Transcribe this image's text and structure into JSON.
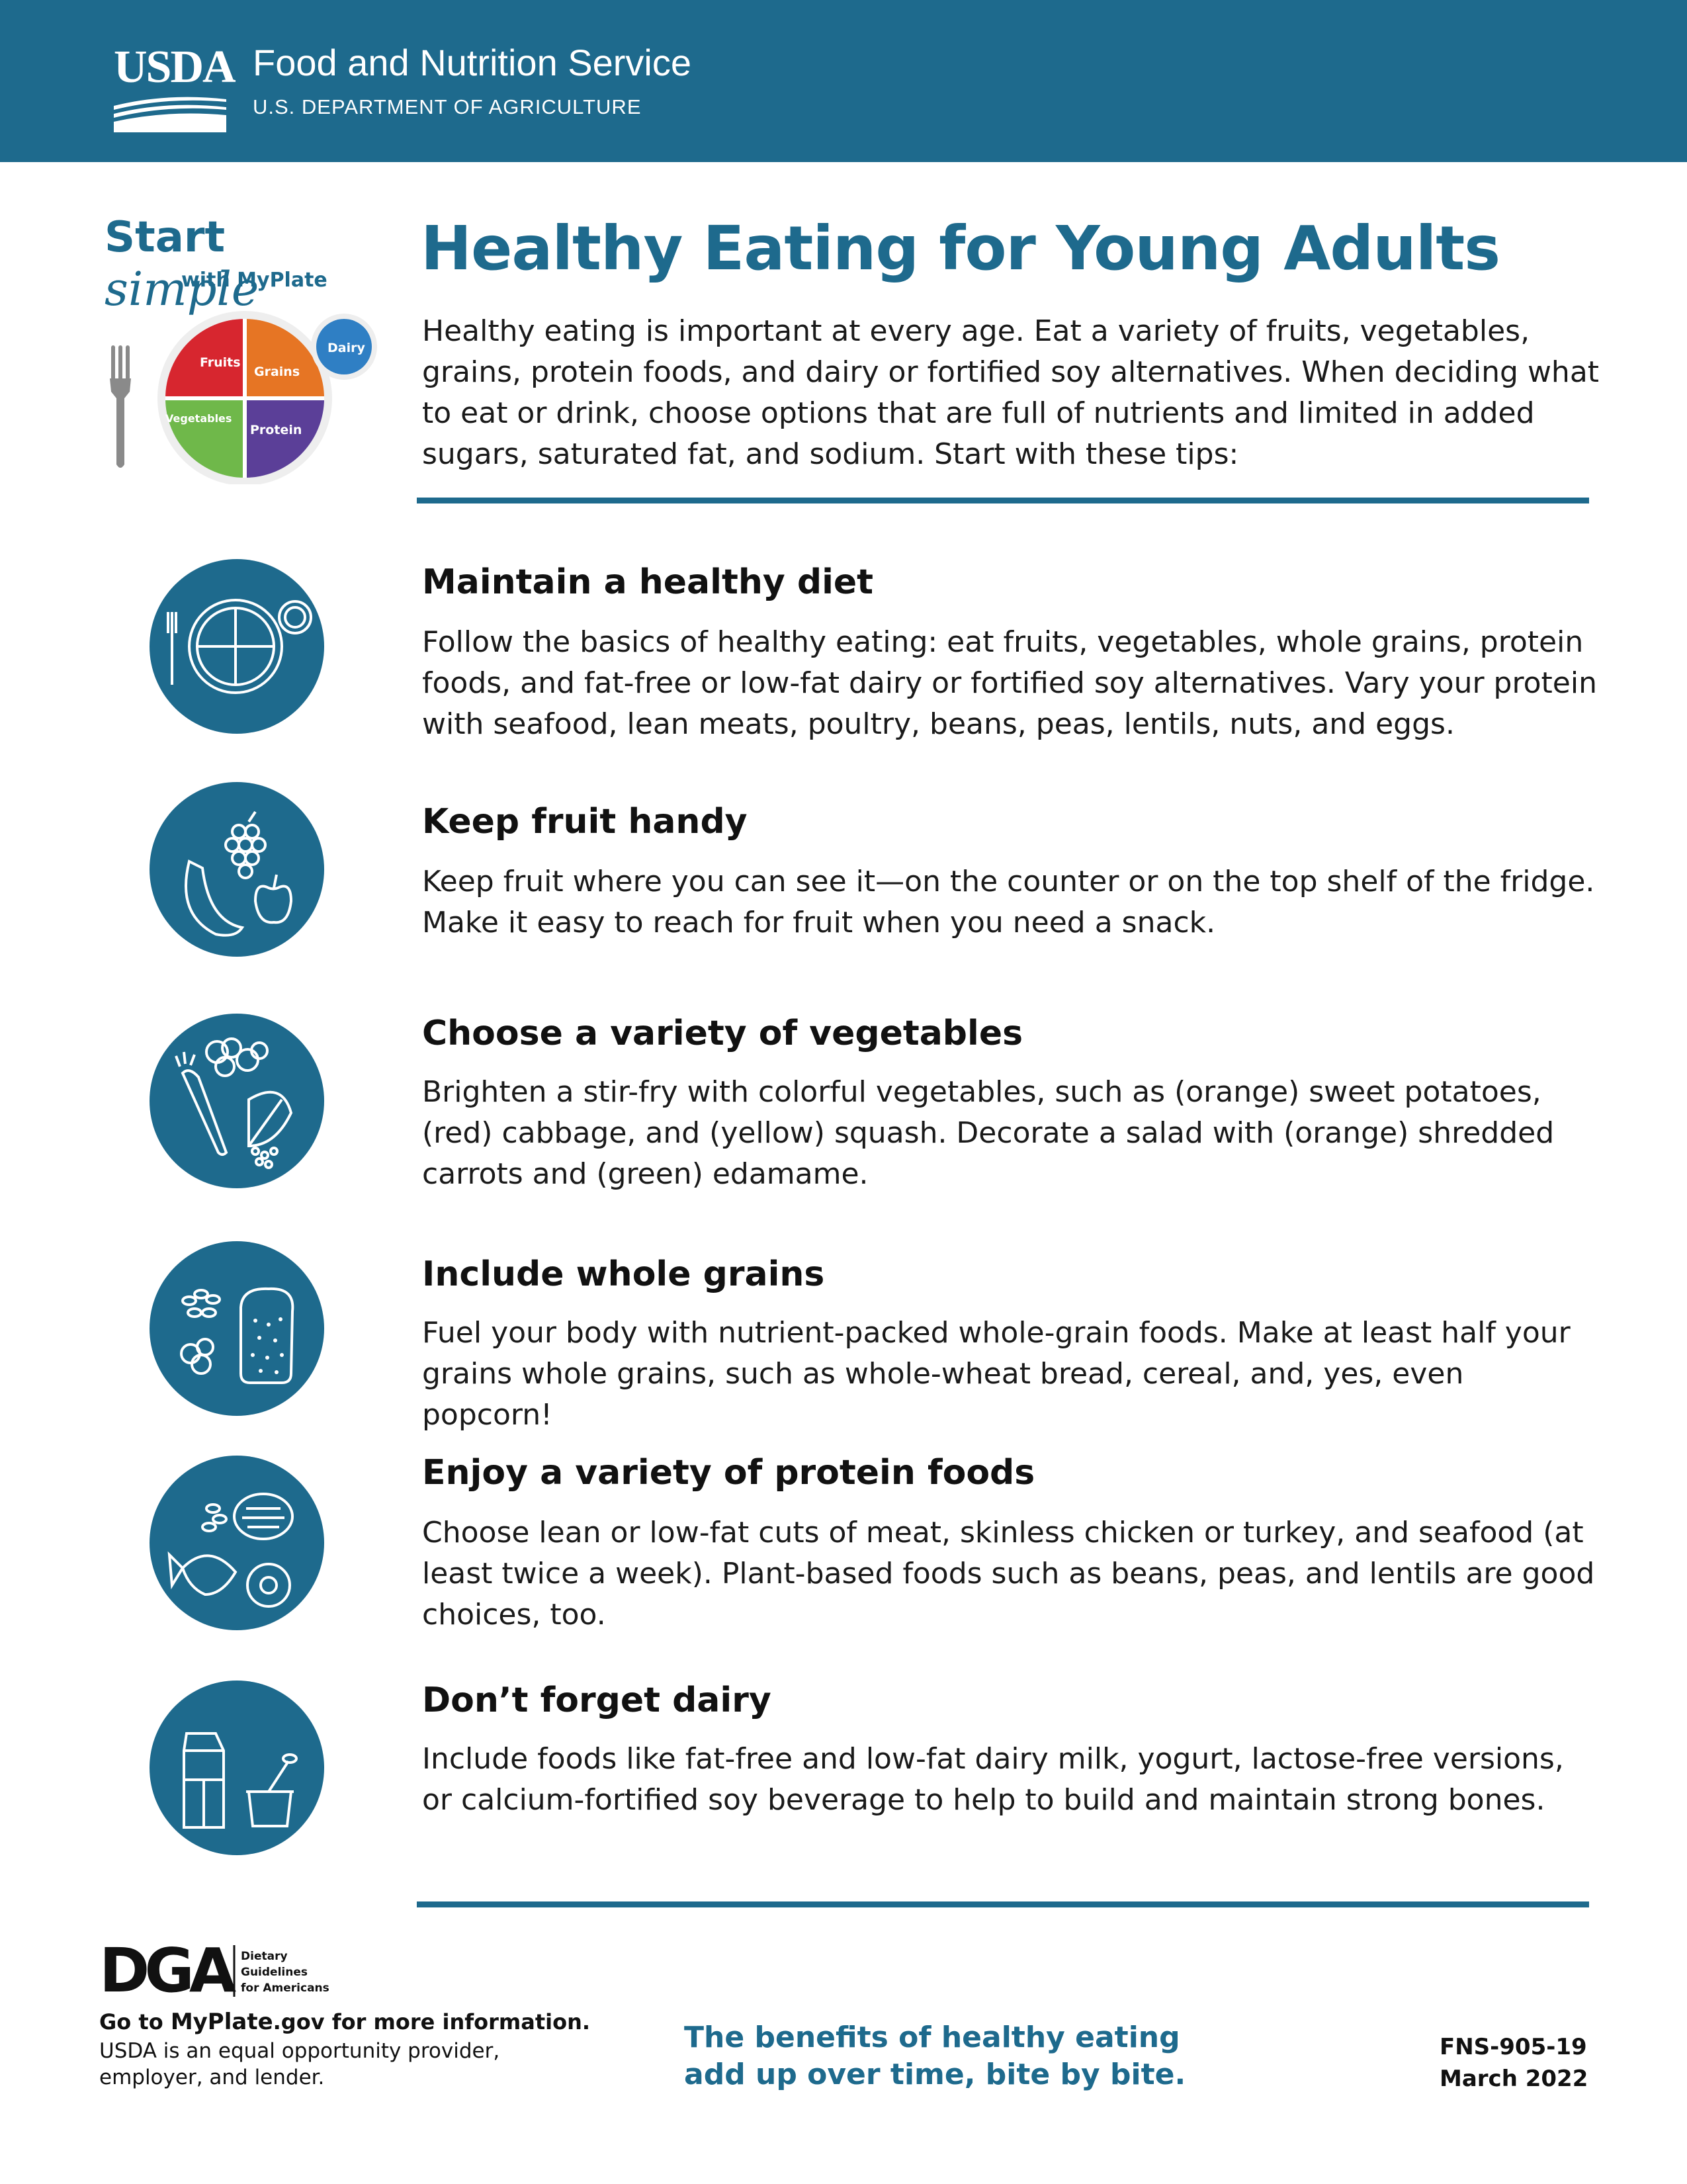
{
  "header": {
    "logo_text": "USDA",
    "agency": "Food and Nutrition Service",
    "department": "U.S. DEPARTMENT OF AGRICULTURE"
  },
  "brand": {
    "start": "Start",
    "simple": "simple",
    "with": "with",
    "myplate": "MyPlate",
    "plate_labels": {
      "fruits": "Fruits",
      "grains": "Grains",
      "vegetables": "Vegetables",
      "protein": "Protein",
      "dairy": "Dairy"
    }
  },
  "colors": {
    "brand_blue": "#1e6a8d",
    "fruits": "#d7262f",
    "grains": "#e67524",
    "vegetables": "#6fb84a",
    "protein": "#5b3f98",
    "dairy": "#2f7fc4"
  },
  "title": "Healthy Eating for Young Adults",
  "intro": "Healthy eating is important at every age. Eat a variety of fruits, vegetables, grains, protein foods, and dairy or fortified soy alternatives. When deciding what to eat or drink, choose options that are full of nutrients and limited in added sugars, saturated fat, and sodium. Start with these tips:",
  "tips": [
    {
      "icon": "plate-icon",
      "title": "Maintain a healthy diet",
      "body": "Follow the basics of healthy eating: eat fruits, vegetables, whole grains, protein foods, and fat-free or low-fat dairy or fortified soy alternatives. Vary your protein with seafood, lean meats, poultry, beans, peas, lentils, nuts, and eggs."
    },
    {
      "icon": "fruit-icon",
      "title": "Keep fruit handy",
      "body": "Keep fruit where you can see it—on the counter or on the top shelf of the fridge. Make it easy to reach for fruit when you need a snack."
    },
    {
      "icon": "vegetables-icon",
      "title": "Choose a variety of vegetables",
      "body": "Brighten a stir-fry with colorful vegetables, such as (orange) sweet potatoes, (red) cabbage, and (yellow) squash. Decorate a salad with (orange) shredded carrots and (green) edamame."
    },
    {
      "icon": "grains-icon",
      "title": "Include whole grains",
      "body": "Fuel your body with nutrient-packed whole-grain foods. Make at least half your grains whole grains, such as whole-wheat bread, cereal, and, yes, even popcorn!"
    },
    {
      "icon": "protein-icon",
      "title": "Enjoy a variety of protein foods",
      "body": "Choose lean or low-fat cuts of meat, skinless chicken or turkey, and seafood (at least twice a week). Plant-based foods such as beans, peas, and lentils are good choices, too."
    },
    {
      "icon": "dairy-icon",
      "title": "Don’t forget dairy",
      "body": "Include foods like fat-free and low-fat dairy milk, yogurt, lactose-free versions, or calcium-fortified soy beverage to help to build and maintain strong bones."
    }
  ],
  "footer": {
    "dga_logo": "DGA",
    "dga_line1": "Dietary",
    "dga_line2": "Guidelines",
    "dga_line3": "for Americans",
    "goto_prefix": "Go to ",
    "goto_site": "MyPlate",
    "goto_suffix": ".gov for more information.",
    "equal_opportunity": "USDA is an equal opportunity provider, employer, and lender.",
    "tagline_line1": "The benefits of healthy eating",
    "tagline_line2": "add up over time, bite by bite.",
    "code": "FNS-905-19",
    "date": "March 2022"
  }
}
